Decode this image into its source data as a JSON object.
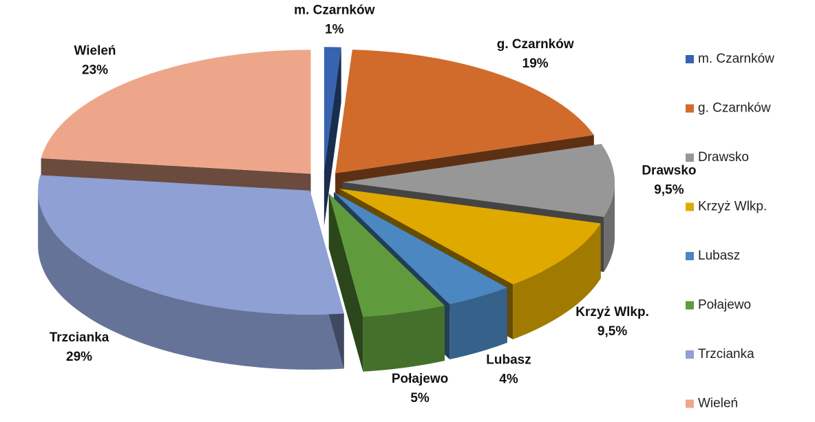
{
  "chart_data": {
    "type": "pie",
    "categories": [
      "m. Czarnków",
      "g. Czarnków",
      "Drawsko",
      "Krzyż Wlkp.",
      "Lubasz",
      "Połajewo",
      "Trzcianka",
      "Wieleń"
    ],
    "values": [
      1,
      19,
      9.5,
      9.5,
      4,
      5,
      29,
      23
    ],
    "value_labels": [
      "1%",
      "19%",
      "9,5%",
      "9,5%",
      "4%",
      "5%",
      "29%",
      "23%"
    ],
    "colors": [
      "#3763b0",
      "#d06b2b",
      "#979797",
      "#e0a900",
      "#4b87c0",
      "#5f9b3d",
      "#8ea0d4",
      "#eea68a"
    ],
    "legend": "right"
  }
}
